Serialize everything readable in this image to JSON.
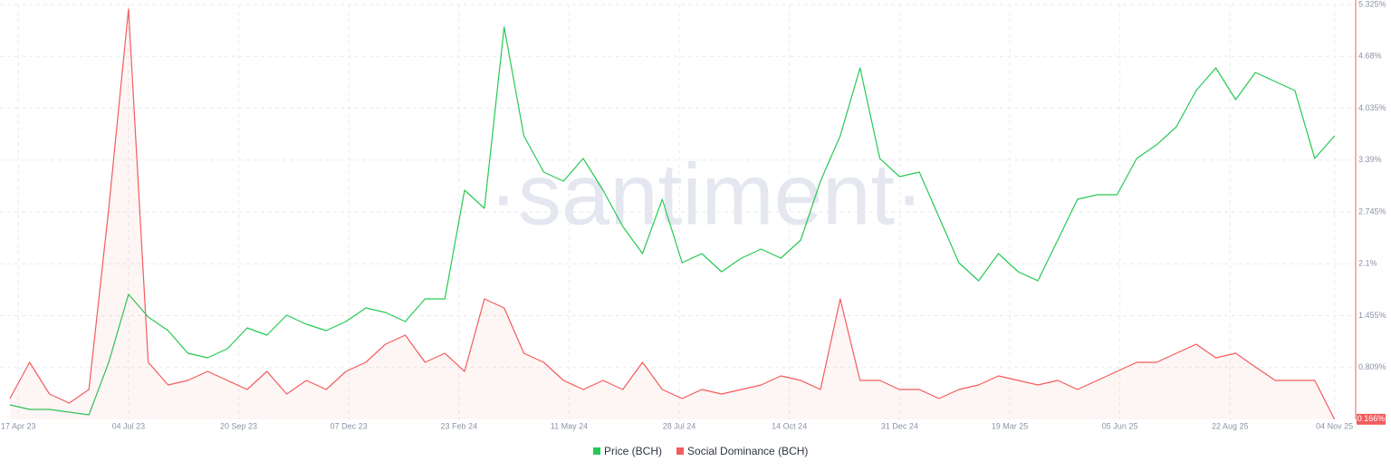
{
  "chart_data": {
    "type": "line",
    "watermark": "·santiment·",
    "x": [
      "2023-04-11",
      "2023-04-25",
      "2023-05-09",
      "2023-05-23",
      "2023-06-06",
      "2023-06-20",
      "2023-07-04",
      "2023-07-18",
      "2023-08-01",
      "2023-08-15",
      "2023-08-29",
      "2023-09-12",
      "2023-09-26",
      "2023-10-10",
      "2023-10-24",
      "2023-11-07",
      "2023-11-21",
      "2023-12-05",
      "2023-12-19",
      "2024-01-02",
      "2024-01-16",
      "2024-01-30",
      "2024-02-13",
      "2024-02-27",
      "2024-03-12",
      "2024-03-26",
      "2024-04-09",
      "2024-04-23",
      "2024-05-07",
      "2024-05-21",
      "2024-06-04",
      "2024-06-18",
      "2024-07-02",
      "2024-07-16",
      "2024-07-30",
      "2024-08-13",
      "2024-08-27",
      "2024-09-10",
      "2024-09-24",
      "2024-10-08",
      "2024-10-22",
      "2024-11-05",
      "2024-11-19",
      "2024-12-03",
      "2024-12-17",
      "2024-12-31",
      "2025-01-14",
      "2025-01-28",
      "2025-02-11",
      "2025-02-25",
      "2025-03-11",
      "2025-03-25",
      "2025-04-08",
      "2025-04-22",
      "2025-05-06",
      "2025-05-20",
      "2025-06-03",
      "2025-06-17",
      "2025-07-01",
      "2025-07-15",
      "2025-07-29",
      "2025-08-12",
      "2025-08-26",
      "2025-09-09",
      "2025-09-23",
      "2025-10-07",
      "2025-10-21",
      "2025-11-04"
    ],
    "series": [
      {
        "name": "Price (BCH)",
        "color": "#26c953",
        "values": [
          0.344,
          0.288,
          0.288,
          0.254,
          0.22,
          0.874,
          1.72,
          1.437,
          1.268,
          0.987,
          0.93,
          1.043,
          1.302,
          1.212,
          1.46,
          1.347,
          1.268,
          1.381,
          1.55,
          1.494,
          1.381,
          1.663,
          1.663,
          3.015,
          2.79,
          5.043,
          3.691,
          3.24,
          3.128,
          3.41,
          3.015,
          2.564,
          2.226,
          2.902,
          2.113,
          2.226,
          2.001,
          2.17,
          2.283,
          2.17,
          2.395,
          3.128,
          3.691,
          4.536,
          3.41,
          3.184,
          3.24,
          2.677,
          2.113,
          1.888,
          2.226,
          2.001,
          1.888,
          2.395,
          2.902,
          2.959,
          2.959,
          3.41,
          3.579,
          3.804,
          4.255,
          4.536,
          4.142,
          4.48,
          4.367,
          4.255,
          3.41,
          3.691
        ]
      },
      {
        "name": "Social Dominance (BCH)",
        "color": "#f25c5c",
        "values": [
          0.423,
          0.874,
          0.48,
          0.367,
          0.536,
          2.79,
          5.269,
          0.874,
          0.592,
          0.649,
          0.761,
          0.649,
          0.536,
          0.761,
          0.48,
          0.649,
          0.536,
          0.761,
          0.874,
          1.099,
          1.212,
          0.874,
          0.987,
          0.761,
          1.663,
          1.55,
          0.987,
          0.874,
          0.649,
          0.536,
          0.649,
          0.536,
          0.874,
          0.536,
          0.423,
          0.536,
          0.48,
          0.536,
          0.592,
          0.705,
          0.649,
          0.536,
          1.663,
          0.649,
          0.649,
          0.536,
          0.536,
          0.423,
          0.536,
          0.592,
          0.705,
          0.649,
          0.592,
          0.649,
          0.536,
          0.649,
          0.761,
          0.874,
          0.874,
          0.987,
          1.099,
          0.93,
          0.987,
          0.817,
          0.649,
          0.649,
          0.649,
          0.166
        ],
        "current_label": {
          "value": 0.166,
          "label": "0.166%"
        }
      }
    ],
    "xlim": [
      "2023-04-04",
      "2025-11-19"
    ],
    "xticks": [
      {
        "value": "2023-04-17",
        "label": "17 Apr 23"
      },
      {
        "value": "2023-07-04",
        "label": "04 Jul 23"
      },
      {
        "value": "2023-09-20",
        "label": "20 Sep 23"
      },
      {
        "value": "2023-12-07",
        "label": "07 Dec 23"
      },
      {
        "value": "2024-02-23",
        "label": "23 Feb 24"
      },
      {
        "value": "2024-05-11",
        "label": "11 May 24"
      },
      {
        "value": "2024-07-28",
        "label": "28 Jul 24"
      },
      {
        "value": "2024-10-14",
        "label": "14 Oct 24"
      },
      {
        "value": "2024-12-31",
        "label": "31 Dec 24"
      },
      {
        "value": "2025-03-19",
        "label": "19 Mar 25"
      },
      {
        "value": "2025-06-05",
        "label": "05 Jun 25"
      },
      {
        "value": "2025-08-22",
        "label": "22 Aug 25"
      },
      {
        "value": "2025-11-04",
        "label": "04 Nov 25"
      }
    ],
    "ylim": [
      0.164,
      5.325
    ],
    "yticks": [
      {
        "value": 0.809,
        "label": "0.809%"
      },
      {
        "value": 1.455,
        "label": "1.455%"
      },
      {
        "value": 2.1,
        "label": "2.1%"
      },
      {
        "value": 2.745,
        "label": "2.745%"
      },
      {
        "value": 3.39,
        "label": "3.39%"
      },
      {
        "value": 4.035,
        "label": "4.035%"
      },
      {
        "value": 4.68,
        "label": "4.68%"
      },
      {
        "value": 5.325,
        "label": "5.325%"
      }
    ],
    "grid": true
  }
}
